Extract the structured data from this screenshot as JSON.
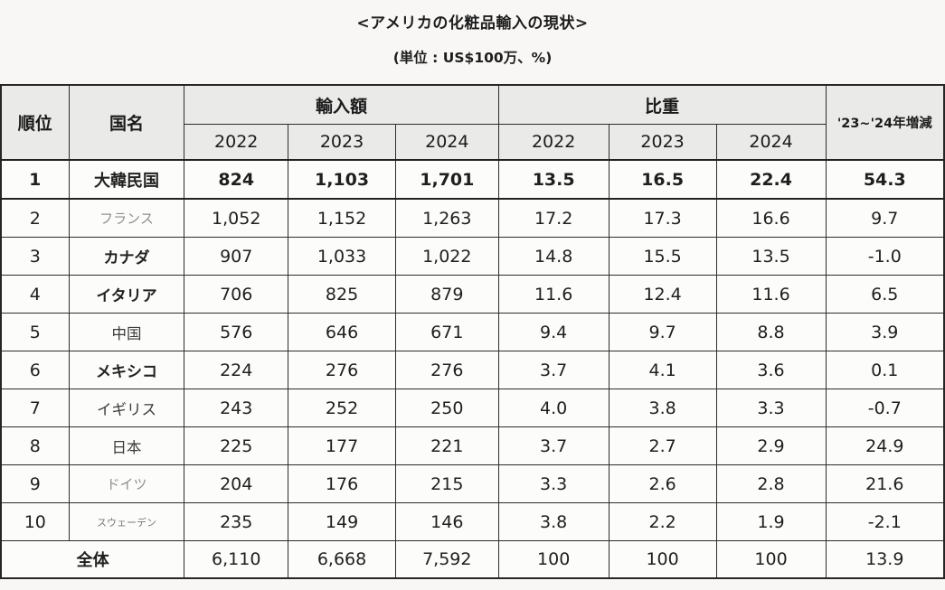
{
  "colors": {
    "page_background": "#f8f7f5",
    "header_background": "#eaeae8",
    "cell_background": "#fcfcfa",
    "border": "#2c2c2c",
    "text": "#1f1f1f",
    "light_text": "#8f8f8f"
  },
  "chart_data": {
    "type": "table",
    "title": "<アメリカの化粧品輸入の現状>",
    "unit_note": "(単位 : US$100万、%)",
    "headers": {
      "rank": "順位",
      "country": "国名",
      "import_value": "輸入額",
      "share": "比重",
      "change": "'23~'24年増減",
      "years": [
        "2022",
        "2023",
        "2024"
      ]
    },
    "rows": [
      {
        "rank": "1",
        "country": "大韓民国",
        "import": [
          "824",
          "1,103",
          "1,701"
        ],
        "share": [
          "13.5",
          "16.5",
          "22.4"
        ],
        "change": "54.3",
        "row_class": "bold-row",
        "country_class": "c-bold"
      },
      {
        "rank": "2",
        "country": "フランス",
        "import": [
          "1,052",
          "1,152",
          "1,263"
        ],
        "share": [
          "17.2",
          "17.3",
          "16.6"
        ],
        "change": "9.7",
        "row_class": "",
        "country_class": "c-light"
      },
      {
        "rank": "3",
        "country": "カナダ",
        "import": [
          "907",
          "1,033",
          "1,022"
        ],
        "share": [
          "14.8",
          "15.5",
          "13.5"
        ],
        "change": "-1.0",
        "row_class": "",
        "country_class": "c-bold"
      },
      {
        "rank": "4",
        "country": "イタリア",
        "import": [
          "706",
          "825",
          "879"
        ],
        "share": [
          "11.6",
          "12.4",
          "11.6"
        ],
        "change": "6.5",
        "row_class": "",
        "country_class": "c-bold"
      },
      {
        "rank": "5",
        "country": "中国",
        "import": [
          "576",
          "646",
          "671"
        ],
        "share": [
          "9.4",
          "9.7",
          "8.8"
        ],
        "change": "3.9",
        "row_class": "",
        "country_class": "c-med"
      },
      {
        "rank": "6",
        "country": "メキシコ",
        "import": [
          "224",
          "276",
          "276"
        ],
        "share": [
          "3.7",
          "4.1",
          "3.6"
        ],
        "change": "0.1",
        "row_class": "",
        "country_class": "c-bold"
      },
      {
        "rank": "7",
        "country": "イギリス",
        "import": [
          "243",
          "252",
          "250"
        ],
        "share": [
          "4.0",
          "3.8",
          "3.3"
        ],
        "change": "-0.7",
        "row_class": "",
        "country_class": "c-med"
      },
      {
        "rank": "8",
        "country": "日本",
        "import": [
          "225",
          "177",
          "221"
        ],
        "share": [
          "3.7",
          "2.7",
          "2.9"
        ],
        "change": "24.9",
        "row_class": "",
        "country_class": "c-med"
      },
      {
        "rank": "9",
        "country": "ドイツ",
        "import": [
          "204",
          "176",
          "215"
        ],
        "share": [
          "3.3",
          "2.6",
          "2.8"
        ],
        "change": "21.6",
        "row_class": "",
        "country_class": "c-light"
      },
      {
        "rank": "10",
        "country": "スウェーデン",
        "import": [
          "235",
          "149",
          "146"
        ],
        "share": [
          "3.8",
          "2.2",
          "1.9"
        ],
        "change": "-2.1",
        "row_class": "",
        "country_class": "c-small"
      }
    ],
    "total_row": {
      "label": "全体",
      "import": [
        "6,110",
        "6,668",
        "7,592"
      ],
      "share": [
        "100",
        "100",
        "100"
      ],
      "change": "13.9"
    }
  }
}
